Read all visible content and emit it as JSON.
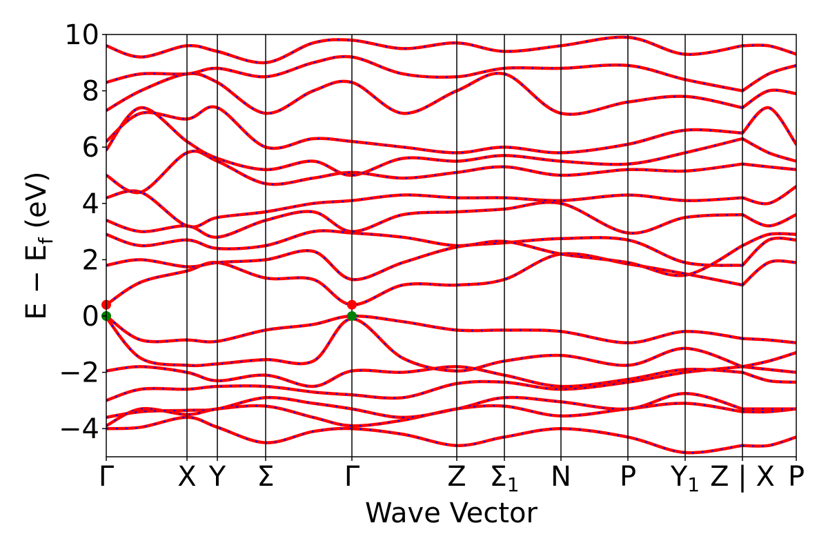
{
  "chart_data": {
    "type": "line",
    "title": "",
    "xlabel": "Wave Vector",
    "ylabel": "E − E_f (eV)",
    "ylabel_parts": {
      "prefix": "E − E",
      "subscript": "f",
      "suffix": " (eV)"
    },
    "ylim": [
      -5,
      10
    ],
    "yticks": [
      -4,
      -2,
      0,
      2,
      4,
      6,
      8,
      10
    ],
    "ytick_labels": [
      "−4",
      "−2",
      "0",
      "2",
      "4",
      "6",
      "8",
      "10"
    ],
    "grid": false,
    "legend": "none",
    "k_path": [
      {
        "label": "Γ",
        "k": 0.0
      },
      {
        "label": "X",
        "k": 0.117
      },
      {
        "label": "Y",
        "k": 0.161
      },
      {
        "label": "Σ",
        "k": 0.231
      },
      {
        "label": "Γ",
        "k": 0.356
      },
      {
        "label": "Z",
        "k": 0.508
      },
      {
        "label": "Σ1",
        "k": 0.577
      },
      {
        "label": "N",
        "k": 0.659
      },
      {
        "label": "P",
        "k": 0.756
      },
      {
        "label": "Y1",
        "k": 0.839
      },
      {
        "label": "Z | X",
        "k": 0.922
      },
      {
        "label": "P",
        "k": 1.0
      }
    ],
    "path_break_k": 0.922,
    "colors": {
      "band_primary": "#ff0000",
      "band_overlay": "#0000ff",
      "cbm_marker": "#ff0000",
      "vbm_marker": "#008000",
      "axis": "#000000"
    },
    "series": [
      {
        "k": [
          0,
          0.05,
          0.117,
          0.161,
          0.231,
          0.3,
          0.356,
          0.43,
          0.508,
          0.577,
          0.659,
          0.756,
          0.839,
          0.922,
          0.96,
          1.0
        ],
        "values": [
          -4.0,
          -3.95,
          -3.6,
          -3.95,
          -4.5,
          -4.1,
          -4.0,
          -4.2,
          -4.6,
          -4.3,
          -4.0,
          -4.3,
          -4.85,
          -4.6,
          -4.6,
          -4.3
        ]
      },
      {
        "k": [
          0,
          0.05,
          0.117,
          0.161,
          0.231,
          0.3,
          0.356,
          0.43,
          0.508,
          0.577,
          0.659,
          0.756,
          0.839,
          0.922,
          0.96,
          1.0
        ],
        "values": [
          -3.9,
          -3.3,
          -3.5,
          -3.3,
          -3.2,
          -3.6,
          -3.9,
          -3.7,
          -3.3,
          -3.2,
          -3.55,
          -3.3,
          -3.1,
          -3.4,
          -3.4,
          -3.3
        ]
      },
      {
        "k": [
          0,
          0.05,
          0.117,
          0.161,
          0.231,
          0.3,
          0.356,
          0.43,
          0.508,
          0.577,
          0.659,
          0.756,
          0.839,
          0.922,
          0.96,
          1.0
        ],
        "values": [
          -3.6,
          -3.4,
          -3.35,
          -3.3,
          -2.9,
          -3.1,
          -3.3,
          -3.6,
          -3.3,
          -2.9,
          -3.05,
          -3.3,
          -2.75,
          -3.3,
          -3.3,
          -3.3
        ]
      },
      {
        "k": [
          0,
          0.05,
          0.117,
          0.161,
          0.231,
          0.3,
          0.356,
          0.43,
          0.508,
          0.577,
          0.659,
          0.756,
          0.839,
          0.922,
          0.96,
          1.0
        ],
        "values": [
          -3.0,
          -2.6,
          -2.6,
          -2.5,
          -2.5,
          -2.7,
          -2.8,
          -2.9,
          -2.4,
          -2.35,
          -2.6,
          -2.35,
          -2.0,
          -1.8,
          -1.9,
          -2.0
        ]
      },
      {
        "k": [
          0,
          0.05,
          0.117,
          0.161,
          0.231,
          0.3,
          0.356,
          0.43,
          0.508,
          0.577,
          0.659,
          0.756,
          0.839,
          0.922,
          0.96,
          1.0
        ],
        "values": [
          -1.95,
          -1.8,
          -2.0,
          -2.3,
          -2.1,
          -2.5,
          -1.95,
          -2.0,
          -1.8,
          -2.1,
          -2.5,
          -2.25,
          -1.9,
          -2.0,
          -2.3,
          -2.35
        ]
      },
      {
        "k": [
          0,
          0.05,
          0.117,
          0.161,
          0.231,
          0.3,
          0.356,
          0.43,
          0.508,
          0.577,
          0.659,
          0.756,
          0.839,
          0.922,
          0.96,
          1.0
        ],
        "values": [
          -0.05,
          -1.5,
          -1.75,
          -1.7,
          -1.55,
          -1.6,
          -0.1,
          -1.5,
          -1.95,
          -1.6,
          -1.4,
          -1.75,
          -1.15,
          -1.8,
          -1.6,
          -1.3
        ]
      },
      {
        "k": [
          0,
          0.05,
          0.117,
          0.161,
          0.231,
          0.3,
          0.356,
          0.43,
          0.508,
          0.577,
          0.659,
          0.756,
          0.839,
          0.922,
          0.96,
          1.0
        ],
        "values": [
          0.0,
          -0.85,
          -0.85,
          -0.9,
          -0.5,
          -0.3,
          0.0,
          -0.2,
          -0.5,
          -0.5,
          -0.55,
          -0.95,
          -0.55,
          -0.8,
          -0.85,
          -0.95
        ]
      },
      {
        "k": [
          0,
          0.05,
          0.117,
          0.161,
          0.231,
          0.3,
          0.356,
          0.43,
          0.508,
          0.577,
          0.659,
          0.756,
          0.839,
          0.922,
          0.96,
          1.0
        ],
        "values": [
          0.4,
          1.2,
          1.6,
          1.9,
          1.35,
          1.3,
          0.4,
          1.1,
          1.1,
          1.3,
          2.2,
          1.85,
          1.5,
          1.1,
          1.9,
          1.9
        ]
      },
      {
        "k": [
          0,
          0.05,
          0.117,
          0.161,
          0.231,
          0.3,
          0.356,
          0.43,
          0.508,
          0.577,
          0.659,
          0.756,
          0.839,
          0.922,
          0.96,
          1.0
        ],
        "values": [
          1.8,
          2.0,
          1.75,
          1.9,
          2.0,
          2.3,
          1.3,
          1.9,
          2.45,
          2.6,
          2.75,
          2.7,
          1.9,
          1.8,
          2.7,
          2.7
        ]
      },
      {
        "k": [
          0,
          0.05,
          0.117,
          0.161,
          0.231,
          0.3,
          0.356,
          0.43,
          0.508,
          0.577,
          0.659,
          0.756,
          0.839,
          0.922,
          0.96,
          1.0
        ],
        "values": [
          2.9,
          2.5,
          2.7,
          2.4,
          2.5,
          3.0,
          2.95,
          2.8,
          2.5,
          2.65,
          2.2,
          1.9,
          1.45,
          2.5,
          2.9,
          2.9
        ]
      },
      {
        "k": [
          0,
          0.05,
          0.117,
          0.161,
          0.231,
          0.3,
          0.356,
          0.43,
          0.508,
          0.577,
          0.659,
          0.756,
          0.839,
          0.922,
          0.96,
          1.0
        ],
        "values": [
          3.4,
          3.0,
          3.2,
          2.8,
          3.4,
          3.7,
          3.0,
          3.6,
          3.7,
          3.8,
          4.0,
          2.95,
          3.5,
          3.6,
          3.2,
          3.6
        ]
      },
      {
        "k": [
          0,
          0.05,
          0.117,
          0.161,
          0.231,
          0.3,
          0.356,
          0.43,
          0.508,
          0.577,
          0.659,
          0.756,
          0.839,
          0.922,
          0.96,
          1.0
        ],
        "values": [
          4.2,
          4.4,
          3.2,
          3.5,
          3.7,
          4.0,
          4.1,
          4.3,
          4.2,
          4.2,
          4.1,
          4.3,
          4.1,
          4.2,
          4.0,
          4.6
        ]
      },
      {
        "k": [
          0,
          0.05,
          0.117,
          0.161,
          0.231,
          0.3,
          0.356,
          0.43,
          0.508,
          0.577,
          0.659,
          0.756,
          0.839,
          0.922,
          0.96,
          1.0
        ],
        "values": [
          5.0,
          4.4,
          5.8,
          5.5,
          4.7,
          4.9,
          5.1,
          4.9,
          5.1,
          5.3,
          5.0,
          5.2,
          5.15,
          5.4,
          5.3,
          5.2
        ]
      },
      {
        "k": [
          0,
          0.05,
          0.117,
          0.161,
          0.231,
          0.3,
          0.356,
          0.43,
          0.508,
          0.577,
          0.659,
          0.756,
          0.839,
          0.922,
          0.96,
          1.0
        ],
        "values": [
          5.9,
          7.4,
          6.2,
          5.6,
          5.2,
          5.5,
          5.0,
          5.6,
          5.5,
          5.7,
          5.5,
          5.4,
          5.8,
          6.3,
          5.8,
          5.5
        ]
      },
      {
        "k": [
          0,
          0.05,
          0.117,
          0.161,
          0.231,
          0.3,
          0.356,
          0.43,
          0.508,
          0.577,
          0.659,
          0.756,
          0.839,
          0.922,
          0.96,
          1.0
        ],
        "values": [
          6.2,
          7.2,
          7.0,
          7.4,
          6.0,
          6.3,
          6.2,
          6.0,
          5.8,
          6.0,
          5.8,
          6.1,
          6.6,
          6.5,
          7.4,
          6.1
        ]
      },
      {
        "k": [
          0,
          0.05,
          0.117,
          0.161,
          0.231,
          0.3,
          0.356,
          0.43,
          0.508,
          0.577,
          0.659,
          0.756,
          0.839,
          0.922,
          0.96,
          1.0
        ],
        "values": [
          7.3,
          8.0,
          8.6,
          8.3,
          7.2,
          8.0,
          8.3,
          7.2,
          8.0,
          8.6,
          7.2,
          7.6,
          7.8,
          7.4,
          8.0,
          7.9
        ]
      },
      {
        "k": [
          0,
          0.05,
          0.117,
          0.161,
          0.231,
          0.3,
          0.356,
          0.43,
          0.508,
          0.577,
          0.659,
          0.756,
          0.839,
          0.922,
          0.96,
          1.0
        ],
        "values": [
          8.3,
          8.6,
          8.6,
          8.8,
          8.5,
          9.0,
          9.2,
          8.6,
          8.5,
          8.8,
          8.8,
          8.9,
          8.4,
          8.0,
          8.6,
          8.9
        ]
      },
      {
        "k": [
          0,
          0.05,
          0.117,
          0.161,
          0.231,
          0.3,
          0.356,
          0.43,
          0.508,
          0.577,
          0.659,
          0.756,
          0.839,
          0.922,
          0.96,
          1.0
        ],
        "values": [
          9.6,
          9.2,
          9.6,
          9.4,
          9.0,
          9.7,
          9.8,
          9.5,
          9.7,
          9.4,
          9.6,
          9.9,
          9.3,
          9.6,
          9.6,
          9.3
        ]
      }
    ],
    "markers": [
      {
        "k": 0.0,
        "y": 0.4,
        "color": "#ff0000"
      },
      {
        "k": 0.0,
        "y": 0.0,
        "color": "#008000"
      },
      {
        "k": 0.356,
        "y": 0.4,
        "color": "#ff0000"
      },
      {
        "k": 0.356,
        "y": 0.0,
        "color": "#008000"
      }
    ]
  }
}
